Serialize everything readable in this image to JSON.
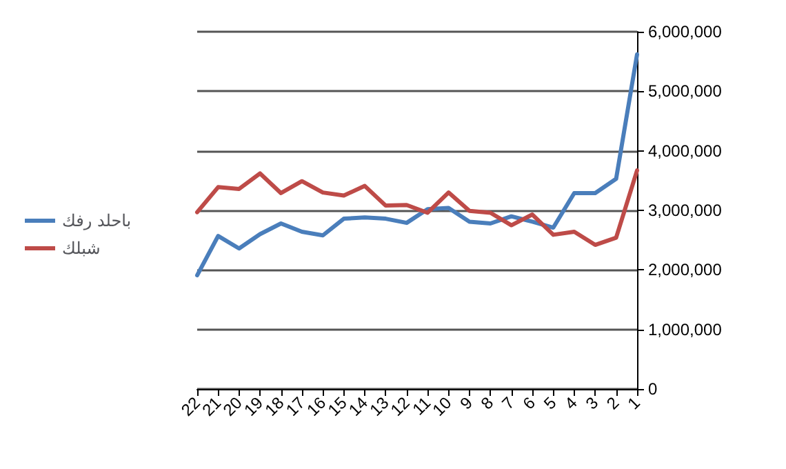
{
  "chart_data": {
    "type": "line",
    "categories": [
      "22",
      "21",
      "20",
      "19",
      "18",
      "17",
      "16",
      "15",
      "14",
      "13",
      "12",
      "11",
      "10",
      "9",
      "8",
      "7",
      "6",
      "5",
      "4",
      "3",
      "2",
      "1"
    ],
    "series": [
      {
        "name": "باحلد رفك",
        "color": "#4a7ebb",
        "values": [
          1910000,
          2570000,
          2360000,
          2600000,
          2780000,
          2640000,
          2580000,
          2860000,
          2880000,
          2860000,
          2790000,
          3020000,
          3040000,
          2810000,
          2780000,
          2900000,
          2810000,
          2710000,
          3290000,
          3290000,
          3530000,
          5620000
        ]
      },
      {
        "name": "شبلك",
        "color": "#be4b48",
        "values": [
          2970000,
          3390000,
          3360000,
          3620000,
          3290000,
          3490000,
          3300000,
          3250000,
          3410000,
          3080000,
          3090000,
          2960000,
          3300000,
          2990000,
          2960000,
          2750000,
          2930000,
          2590000,
          2640000,
          2420000,
          2540000,
          3670000
        ]
      }
    ],
    "ylim": [
      0,
      6000000
    ],
    "yticks": [
      {
        "value": 0,
        "label": "0"
      },
      {
        "value": 1000000,
        "label": "1,000,000"
      },
      {
        "value": 2000000,
        "label": "2,000,000"
      },
      {
        "value": 3000000,
        "label": "3,000,000"
      },
      {
        "value": 4000000,
        "label": "4,000,000"
      },
      {
        "value": 5000000,
        "label": "5,000,000"
      },
      {
        "value": 6000000,
        "label": "6,000,000"
      }
    ],
    "grid": "y",
    "legend": "left",
    "marker": "none",
    "line_style": "solid"
  }
}
